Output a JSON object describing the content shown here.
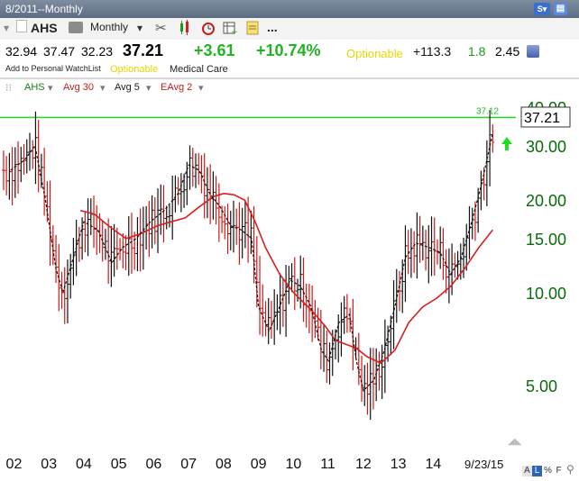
{
  "window": {
    "title": "8/2011--Monthly"
  },
  "toolbar": {
    "symbol": "AHS",
    "period": "Monthly",
    "more_label": "..."
  },
  "quote": {
    "open": "32.94",
    "high": "37.47",
    "low": "32.23",
    "last": "37.21",
    "change": "+3.61",
    "change_pct": "+10.74%",
    "optionable": "Optionable",
    "stat1": "+113.3",
    "stat2": "1.8",
    "stat3": "2.45"
  },
  "links": {
    "watchlist": "Add to Personal WatchList",
    "optionable": "Optionable",
    "sector": "Medical Care"
  },
  "legend": {
    "items": [
      {
        "label": "AHS",
        "color": "#1a7a1a"
      },
      {
        "label": "Avg 30",
        "color": "#c02020"
      },
      {
        "label": "Avg 5",
        "color": "#222222"
      },
      {
        "label": "EAvg 2",
        "color": "#c02020"
      }
    ]
  },
  "chart_data": {
    "type": "line",
    "scale": "log",
    "ylim": [
      3.2,
      42
    ],
    "y_ticks": [
      "40.00",
      "30.00",
      "20.00",
      "15.00",
      "10.00",
      "5.00"
    ],
    "x_labels": [
      "02",
      "03",
      "04",
      "05",
      "06",
      "07",
      "08",
      "09",
      "10",
      "11",
      "12",
      "13",
      "14",
      "9/23/15"
    ],
    "last_price_label": "37.21",
    "line_label": "37.12",
    "line_value": 37.12,
    "colors": {
      "up": "#111111",
      "down": "#d01818",
      "avg30": "#d82020",
      "avg5": "#111111",
      "line": "#22dd22",
      "axis": "#0a6a0a"
    },
    "series": [
      {
        "name": "Avg 30",
        "points": [
          [
            2003.9,
            18.5
          ],
          [
            2004.3,
            18
          ],
          [
            2004.7,
            16.5
          ],
          [
            2005.2,
            15
          ],
          [
            2005.6,
            15.5
          ],
          [
            2006.1,
            16.5
          ],
          [
            2006.5,
            17
          ],
          [
            2006.9,
            17.5
          ],
          [
            2007.3,
            19
          ],
          [
            2007.7,
            20.5
          ],
          [
            2008.0,
            21
          ],
          [
            2008.3,
            20.8
          ],
          [
            2008.6,
            20
          ],
          [
            2008.9,
            17
          ],
          [
            2009.2,
            14
          ],
          [
            2009.6,
            11.5
          ],
          [
            2010.0,
            10
          ],
          [
            2010.5,
            8.8
          ],
          [
            2010.9,
            7.8
          ],
          [
            2011.2,
            7.0
          ],
          [
            2011.5,
            6.8
          ],
          [
            2011.8,
            6.6
          ],
          [
            2012.1,
            6.2
          ],
          [
            2012.5,
            5.9
          ],
          [
            2012.9,
            6.5
          ],
          [
            2013.3,
            8.0
          ],
          [
            2013.7,
            9.0
          ],
          [
            2014.1,
            9.6
          ],
          [
            2014.5,
            10.5
          ],
          [
            2014.9,
            12
          ],
          [
            2015.3,
            14
          ],
          [
            2015.7,
            16
          ]
        ]
      },
      {
        "name": "Avg 5",
        "points": [
          [
            2001.9,
            25
          ],
          [
            2002.3,
            27
          ],
          [
            2002.6,
            30
          ],
          [
            2002.9,
            20
          ],
          [
            2003.2,
            12
          ],
          [
            2003.4,
            10
          ],
          [
            2003.7,
            13
          ],
          [
            2004.0,
            17
          ],
          [
            2004.4,
            16
          ],
          [
            2004.8,
            12.5
          ],
          [
            2005.1,
            14
          ],
          [
            2005.5,
            15
          ],
          [
            2005.9,
            17
          ],
          [
            2006.3,
            18.5
          ],
          [
            2006.7,
            21
          ],
          [
            2007.0,
            26
          ],
          [
            2007.3,
            25
          ],
          [
            2007.6,
            21
          ],
          [
            2007.9,
            19
          ],
          [
            2008.2,
            16.5
          ],
          [
            2008.5,
            16
          ],
          [
            2008.8,
            15
          ],
          [
            2009.0,
            9
          ],
          [
            2009.3,
            7.5
          ],
          [
            2009.6,
            9
          ],
          [
            2009.9,
            11
          ],
          [
            2010.2,
            10.5
          ],
          [
            2010.5,
            9
          ],
          [
            2010.8,
            6.5
          ],
          [
            2011.0,
            6
          ],
          [
            2011.3,
            8
          ],
          [
            2011.6,
            8.5
          ],
          [
            2011.8,
            6
          ],
          [
            2012.0,
            4.8
          ],
          [
            2012.3,
            5.2
          ],
          [
            2012.6,
            6.5
          ],
          [
            2012.9,
            9
          ],
          [
            2013.2,
            13
          ],
          [
            2013.5,
            14.5
          ],
          [
            2013.9,
            14
          ],
          [
            2014.2,
            13.5
          ],
          [
            2014.5,
            11.5
          ],
          [
            2014.8,
            13
          ],
          [
            2015.1,
            17
          ],
          [
            2015.4,
            23
          ],
          [
            2015.7,
            33
          ]
        ]
      }
    ]
  }
}
